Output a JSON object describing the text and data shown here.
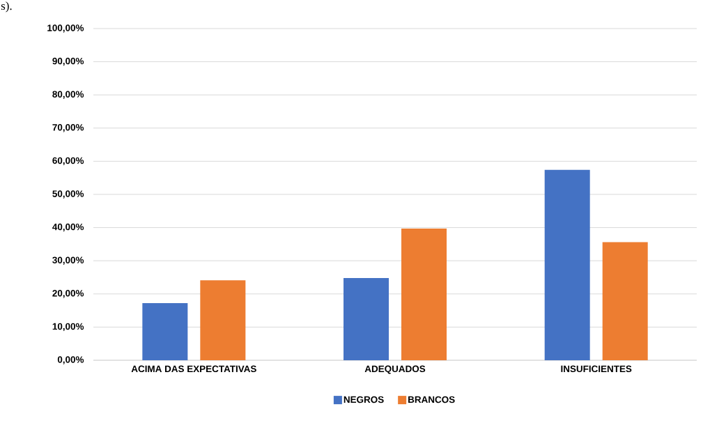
{
  "chart_data": {
    "type": "bar",
    "categories": [
      "ACIMA DAS EXPECTATIVAS",
      "ADEQUADOS",
      "INSUFICIENTES"
    ],
    "series": [
      {
        "name": "NEGROS",
        "color": "#4472c4",
        "values": [
          17.2,
          24.8,
          57.4
        ]
      },
      {
        "name": "BRANCOS",
        "color": "#ed7d31",
        "values": [
          24.1,
          39.7,
          35.6
        ]
      }
    ],
    "ylim": [
      0,
      100
    ],
    "yticks": [
      {
        "value": 0,
        "label": "0,00%"
      },
      {
        "value": 10,
        "label": "10,00%"
      },
      {
        "value": 20,
        "label": "20,00%"
      },
      {
        "value": 30,
        "label": "30,00%"
      },
      {
        "value": 40,
        "label": "40,00%"
      },
      {
        "value": 50,
        "label": "50,00%"
      },
      {
        "value": 60,
        "label": "60,00%"
      },
      {
        "value": 70,
        "label": "70,00%"
      },
      {
        "value": 80,
        "label": "80,00%"
      },
      {
        "value": 90,
        "label": "90,00%"
      },
      {
        "value": 100,
        "label": "100,00%"
      }
    ],
    "grid": "y",
    "legend": "bottom",
    "annotations": [
      "s)."
    ]
  }
}
